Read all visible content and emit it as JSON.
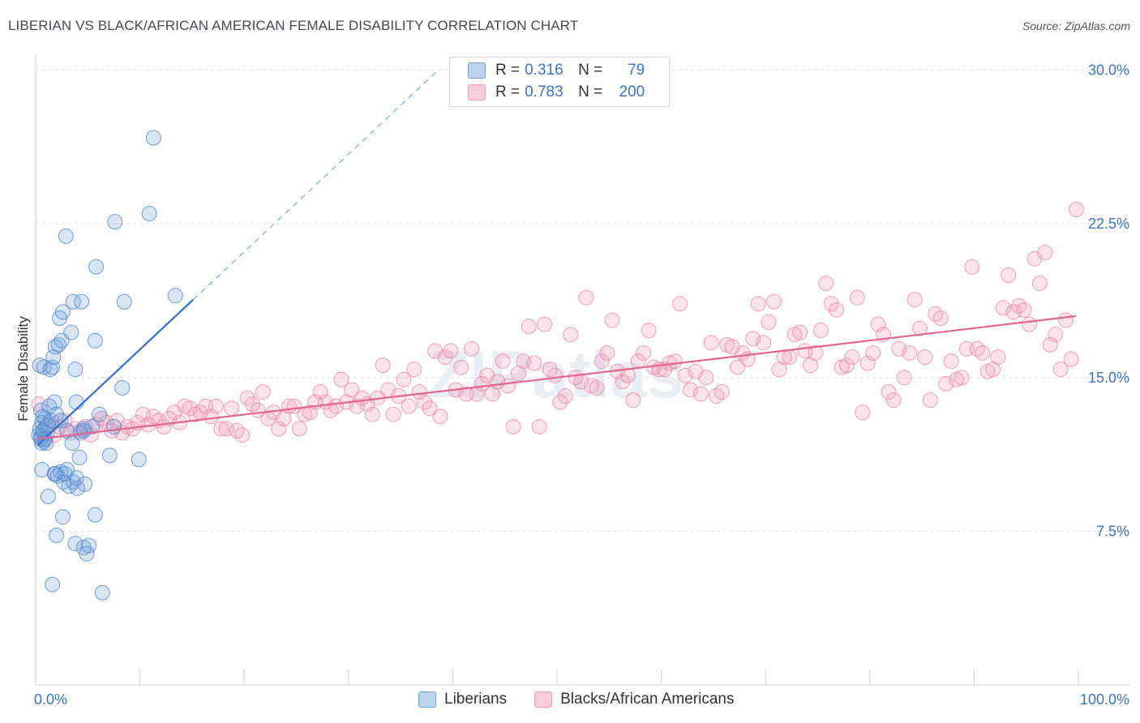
{
  "title": "LIBERIAN VS BLACK/AFRICAN AMERICAN FEMALE DISABILITY CORRELATION CHART",
  "source": "Source: ZipAtlas.com",
  "watermark": "ZIPatlas",
  "legend": {
    "rows": [
      {
        "r_label": "R =",
        "r_value": "0.316",
        "n_label": "N =",
        "n_value": "79",
        "color": "#6fa0dc"
      },
      {
        "r_label": "R =",
        "r_value": "0.783",
        "n_label": "N =",
        "n_value": "200",
        "color": "#f29bb6"
      }
    ]
  },
  "bottom_legend": {
    "items": [
      {
        "label": "Liberians",
        "color": "#6fa0dc"
      },
      {
        "label": "Blacks/African Americans",
        "color": "#f29bb6"
      }
    ]
  },
  "chart_data": {
    "type": "scatter",
    "title": "LIBERIAN VS BLACK/AFRICAN AMERICAN FEMALE DISABILITY CORRELATION CHART",
    "xlabel": "",
    "ylabel": "Female Disability",
    "xlim": [
      0,
      100
    ],
    "ylim": [
      0,
      31.5
    ],
    "x_tick_labels": [
      "0.0%",
      "100.0%"
    ],
    "y_ticks": [
      7.5,
      15.0,
      22.5,
      30.0
    ],
    "y_tick_labels": [
      "7.5%",
      "15.0%",
      "22.5%",
      "30.0%"
    ],
    "grid": "horizontal dashed",
    "series": [
      {
        "name": "Liberians",
        "color": "#6fa0dc",
        "R": 0.316,
        "N": 79,
        "trend": {
          "x0": 0.2,
          "y0": 11.7,
          "x1": 15.1,
          "y1": 18.8,
          "dash_to_x": 38.6,
          "dash_to_y": 30.0
        },
        "points": [
          [
            0.3,
            12.2
          ],
          [
            0.4,
            12.5
          ],
          [
            0.5,
            12.1
          ],
          [
            0.6,
            12.8
          ],
          [
            0.7,
            12.4
          ],
          [
            0.8,
            11.9
          ],
          [
            0.9,
            13.0
          ],
          [
            1.0,
            12.6
          ],
          [
            0.5,
            13.4
          ],
          [
            0.7,
            13.1
          ],
          [
            1.1,
            12.3
          ],
          [
            1.2,
            12.7
          ],
          [
            0.6,
            11.8
          ],
          [
            0.9,
            12.0
          ],
          [
            1.3,
            13.6
          ],
          [
            1.5,
            12.9
          ],
          [
            0.4,
            15.6
          ],
          [
            0.8,
            15.5
          ],
          [
            1.4,
            15.4
          ],
          [
            1.6,
            15.5
          ],
          [
            1.7,
            16.0
          ],
          [
            1.9,
            16.5
          ],
          [
            2.2,
            16.6
          ],
          [
            2.5,
            16.8
          ],
          [
            2.3,
            17.9
          ],
          [
            2.6,
            18.2
          ],
          [
            3.4,
            17.2
          ],
          [
            3.6,
            18.7
          ],
          [
            4.4,
            18.7
          ],
          [
            5.7,
            16.8
          ],
          [
            3.8,
            15.4
          ],
          [
            1.8,
            13.8
          ],
          [
            2.0,
            13.2
          ],
          [
            2.4,
            12.9
          ],
          [
            3.0,
            12.4
          ],
          [
            3.9,
            13.8
          ],
          [
            4.6,
            12.5
          ],
          [
            6.1,
            13.2
          ],
          [
            7.5,
            12.6
          ],
          [
            8.3,
            14.5
          ],
          [
            0.6,
            10.5
          ],
          [
            1.2,
            9.2
          ],
          [
            1.8,
            10.3
          ],
          [
            2.1,
            10.2
          ],
          [
            2.4,
            10.4
          ],
          [
            2.7,
            9.9
          ],
          [
            3.0,
            10.5
          ],
          [
            3.2,
            9.7
          ],
          [
            3.6,
            9.9
          ],
          [
            4.0,
            9.6
          ],
          [
            4.7,
            9.8
          ],
          [
            2.6,
            8.2
          ],
          [
            5.7,
            8.3
          ],
          [
            2.0,
            7.3
          ],
          [
            3.8,
            6.9
          ],
          [
            4.6,
            6.7
          ],
          [
            5.1,
            6.8
          ],
          [
            4.9,
            6.4
          ],
          [
            1.6,
            4.9
          ],
          [
            6.4,
            4.5
          ],
          [
            3.9,
            10.1
          ],
          [
            4.2,
            11.1
          ],
          [
            7.1,
            11.2
          ],
          [
            9.9,
            11.0
          ],
          [
            1.9,
            10.3
          ],
          [
            2.8,
            10.3
          ],
          [
            3.5,
            11.8
          ],
          [
            2.9,
            21.9
          ],
          [
            7.6,
            22.6
          ],
          [
            10.9,
            23.0
          ],
          [
            11.3,
            26.7
          ],
          [
            5.8,
            20.4
          ],
          [
            8.5,
            18.7
          ],
          [
            13.4,
            19.0
          ],
          [
            4.3,
            12.3
          ],
          [
            4.6,
            12.4
          ],
          [
            0.5,
            12.0
          ],
          [
            1.0,
            11.8
          ],
          [
            5.4,
            12.6
          ]
        ]
      },
      {
        "name": "Blacks/African Americans",
        "color": "#f29bb6",
        "R": 0.783,
        "N": 200,
        "trend": {
          "x0": 0.2,
          "y0": 12.0,
          "x1": 99.8,
          "y1": 18.0
        },
        "points": [
          [
            0.3,
            13.7
          ],
          [
            0.8,
            12.4
          ],
          [
            1.3,
            12.8
          ],
          [
            1.8,
            12.2
          ],
          [
            2.3,
            12.6
          ],
          [
            2.8,
            12.9
          ],
          [
            3.3,
            12.3
          ],
          [
            3.8,
            12.5
          ],
          [
            4.3,
            12.4
          ],
          [
            4.8,
            12.6
          ],
          [
            5.3,
            12.2
          ],
          [
            5.8,
            12.7
          ],
          [
            6.3,
            13.0
          ],
          [
            6.8,
            12.8
          ],
          [
            7.3,
            12.4
          ],
          [
            7.8,
            12.9
          ],
          [
            8.3,
            12.3
          ],
          [
            8.8,
            12.6
          ],
          [
            9.3,
            12.5
          ],
          [
            9.8,
            12.8
          ],
          [
            10.3,
            13.2
          ],
          [
            10.8,
            12.7
          ],
          [
            11.3,
            13.1
          ],
          [
            11.8,
            12.9
          ],
          [
            12.3,
            12.6
          ],
          [
            12.8,
            13.0
          ],
          [
            13.3,
            13.3
          ],
          [
            13.8,
            12.8
          ],
          [
            14.3,
            13.6
          ],
          [
            14.8,
            13.5
          ],
          [
            15.3,
            13.2
          ],
          [
            15.8,
            13.3
          ],
          [
            16.3,
            13.6
          ],
          [
            16.8,
            13.1
          ],
          [
            17.3,
            13.6
          ],
          [
            17.8,
            12.5
          ],
          [
            18.3,
            12.5
          ],
          [
            18.8,
            13.5
          ],
          [
            19.3,
            12.4
          ],
          [
            19.8,
            12.2
          ],
          [
            20.3,
            14.0
          ],
          [
            20.8,
            13.7
          ],
          [
            21.3,
            13.4
          ],
          [
            21.8,
            14.3
          ],
          [
            22.3,
            13.0
          ],
          [
            22.8,
            13.3
          ],
          [
            23.3,
            12.5
          ],
          [
            23.8,
            13.0
          ],
          [
            24.3,
            13.6
          ],
          [
            24.8,
            13.6
          ],
          [
            25.3,
            12.5
          ],
          [
            25.8,
            13.2
          ],
          [
            26.3,
            13.3
          ],
          [
            26.8,
            13.8
          ],
          [
            27.3,
            14.3
          ],
          [
            27.8,
            13.8
          ],
          [
            28.3,
            13.4
          ],
          [
            28.8,
            13.6
          ],
          [
            29.3,
            14.9
          ],
          [
            29.8,
            13.8
          ],
          [
            30.3,
            14.4
          ],
          [
            30.8,
            13.6
          ],
          [
            31.3,
            14.0
          ],
          [
            31.8,
            13.7
          ],
          [
            32.3,
            13.2
          ],
          [
            32.8,
            14.0
          ],
          [
            33.3,
            15.6
          ],
          [
            33.8,
            14.4
          ],
          [
            34.3,
            13.2
          ],
          [
            34.8,
            14.1
          ],
          [
            35.3,
            14.9
          ],
          [
            35.8,
            13.6
          ],
          [
            36.3,
            15.4
          ],
          [
            36.8,
            14.3
          ],
          [
            37.3,
            13.8
          ],
          [
            37.8,
            13.5
          ],
          [
            38.3,
            16.3
          ],
          [
            38.8,
            13.1
          ],
          [
            39.3,
            16.0
          ],
          [
            39.8,
            16.3
          ],
          [
            40.3,
            14.4
          ],
          [
            40.8,
            15.5
          ],
          [
            41.3,
            14.2
          ],
          [
            41.8,
            16.4
          ],
          [
            42.3,
            14.2
          ],
          [
            42.8,
            14.7
          ],
          [
            43.3,
            15.1
          ],
          [
            43.8,
            14.2
          ],
          [
            44.3,
            14.8
          ],
          [
            44.8,
            15.8
          ],
          [
            45.3,
            14.6
          ],
          [
            45.8,
            12.6
          ],
          [
            46.3,
            15.2
          ],
          [
            46.8,
            15.8
          ],
          [
            47.3,
            17.5
          ],
          [
            47.8,
            15.7
          ],
          [
            48.3,
            12.6
          ],
          [
            48.8,
            17.6
          ],
          [
            49.3,
            15.4
          ],
          [
            49.8,
            15.1
          ],
          [
            50.3,
            13.8
          ],
          [
            50.8,
            14.1
          ],
          [
            51.3,
            17.1
          ],
          [
            51.8,
            15.0
          ],
          [
            52.3,
            14.8
          ],
          [
            52.8,
            18.9
          ],
          [
            53.3,
            14.6
          ],
          [
            53.8,
            14.5
          ],
          [
            54.3,
            15.8
          ],
          [
            54.8,
            16.2
          ],
          [
            55.3,
            17.8
          ],
          [
            55.8,
            15.3
          ],
          [
            56.3,
            14.8
          ],
          [
            56.8,
            15.1
          ],
          [
            57.3,
            13.9
          ],
          [
            57.8,
            15.8
          ],
          [
            58.3,
            16.2
          ],
          [
            58.8,
            17.3
          ],
          [
            59.3,
            15.5
          ],
          [
            59.8,
            15.4
          ],
          [
            60.3,
            15.4
          ],
          [
            60.8,
            15.7
          ],
          [
            61.3,
            15.8
          ],
          [
            61.8,
            18.6
          ],
          [
            62.3,
            15.1
          ],
          [
            62.8,
            14.4
          ],
          [
            63.3,
            15.3
          ],
          [
            63.8,
            14.2
          ],
          [
            64.3,
            15.0
          ],
          [
            64.8,
            16.7
          ],
          [
            65.3,
            14.1
          ],
          [
            65.8,
            14.3
          ],
          [
            66.3,
            16.6
          ],
          [
            66.8,
            16.5
          ],
          [
            67.3,
            15.5
          ],
          [
            67.8,
            16.2
          ],
          [
            68.3,
            15.9
          ],
          [
            68.8,
            16.9
          ],
          [
            69.3,
            18.6
          ],
          [
            69.8,
            16.7
          ],
          [
            70.3,
            17.7
          ],
          [
            70.8,
            18.7
          ],
          [
            71.3,
            15.4
          ],
          [
            71.8,
            16.0
          ],
          [
            72.3,
            16.0
          ],
          [
            72.8,
            17.1
          ],
          [
            73.3,
            17.2
          ],
          [
            73.8,
            16.3
          ],
          [
            74.3,
            15.6
          ],
          [
            74.8,
            16.2
          ],
          [
            75.3,
            17.3
          ],
          [
            75.8,
            19.6
          ],
          [
            76.3,
            18.6
          ],
          [
            76.8,
            18.3
          ],
          [
            77.3,
            15.5
          ],
          [
            77.8,
            15.6
          ],
          [
            78.3,
            16.0
          ],
          [
            78.8,
            18.9
          ],
          [
            79.3,
            13.3
          ],
          [
            79.8,
            15.7
          ],
          [
            80.3,
            16.2
          ],
          [
            80.8,
            17.6
          ],
          [
            81.3,
            17.1
          ],
          [
            81.8,
            14.3
          ],
          [
            82.3,
            13.9
          ],
          [
            82.8,
            16.4
          ],
          [
            83.3,
            15.0
          ],
          [
            83.8,
            16.2
          ],
          [
            84.3,
            18.8
          ],
          [
            84.8,
            17.4
          ],
          [
            85.3,
            16.0
          ],
          [
            85.8,
            13.9
          ],
          [
            86.3,
            18.1
          ],
          [
            86.8,
            17.9
          ],
          [
            87.3,
            14.7
          ],
          [
            87.8,
            15.8
          ],
          [
            88.3,
            14.9
          ],
          [
            88.8,
            15.0
          ],
          [
            89.3,
            16.4
          ],
          [
            89.8,
            20.4
          ],
          [
            90.3,
            16.4
          ],
          [
            90.8,
            16.2
          ],
          [
            91.3,
            15.3
          ],
          [
            91.8,
            15.4
          ],
          [
            92.3,
            16.0
          ],
          [
            92.8,
            18.4
          ],
          [
            93.3,
            20.0
          ],
          [
            93.8,
            18.2
          ],
          [
            94.3,
            18.5
          ],
          [
            94.8,
            18.3
          ],
          [
            95.3,
            17.6
          ],
          [
            95.8,
            20.8
          ],
          [
            96.3,
            19.6
          ],
          [
            96.8,
            21.1
          ],
          [
            97.3,
            16.6
          ],
          [
            97.8,
            17.1
          ],
          [
            98.3,
            15.4
          ],
          [
            98.8,
            17.8
          ],
          [
            99.3,
            15.9
          ],
          [
            99.8,
            23.2
          ]
        ]
      }
    ]
  }
}
